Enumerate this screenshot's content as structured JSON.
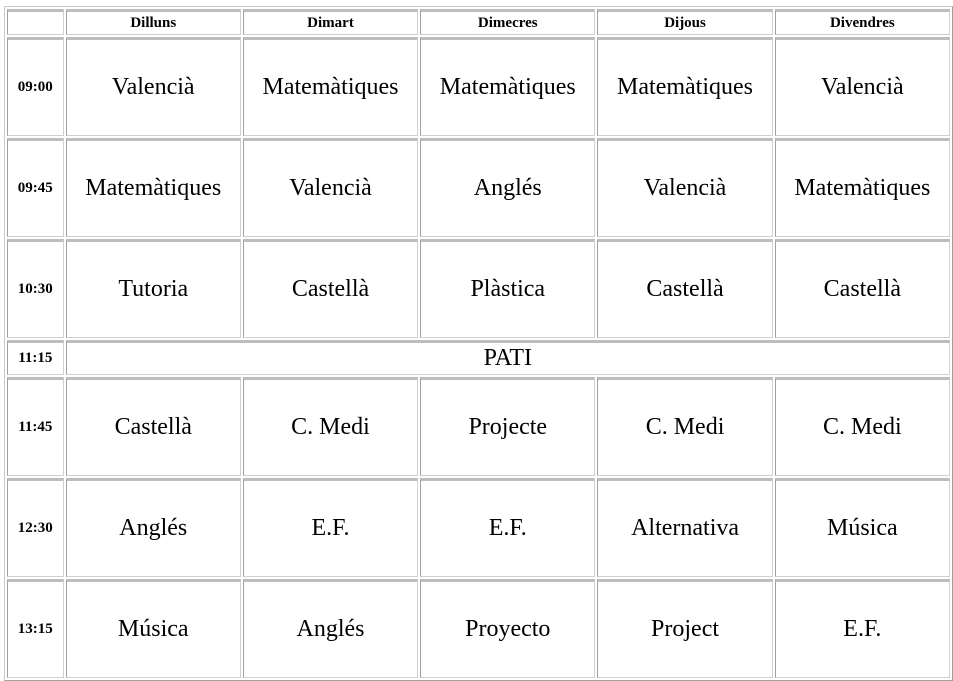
{
  "days": [
    "Dilluns",
    "Dimart",
    "Dimecres",
    "Dijous",
    "Divendres"
  ],
  "rows": [
    {
      "time": "09:00",
      "subjects": [
        "Valencià",
        "Matemàtiques",
        "Matemàtiques",
        "Matemàtiques",
        "Valencià"
      ]
    },
    {
      "time": "09:45",
      "subjects": [
        "Matemàtiques",
        "Valencià",
        "Anglés",
        "Valencià",
        "Matemàtiques"
      ]
    },
    {
      "time": "10:30",
      "subjects": [
        "Tutoria",
        "Castellà",
        "Plàstica",
        "Castellà",
        "Castellà"
      ]
    },
    {
      "time": "11:15",
      "break": "PATI"
    },
    {
      "time": "11:45",
      "subjects": [
        "Castellà",
        "C. Medi",
        "Projecte",
        "C. Medi",
        "C. Medi"
      ]
    },
    {
      "time": "12:30",
      "subjects": [
        "Anglés",
        "E.F.",
        "E.F.",
        "Alternativa",
        "Música"
      ]
    },
    {
      "time": "13:15",
      "subjects": [
        "Música",
        "Anglés",
        "Proyecto",
        "Project",
        "E.F."
      ]
    }
  ]
}
